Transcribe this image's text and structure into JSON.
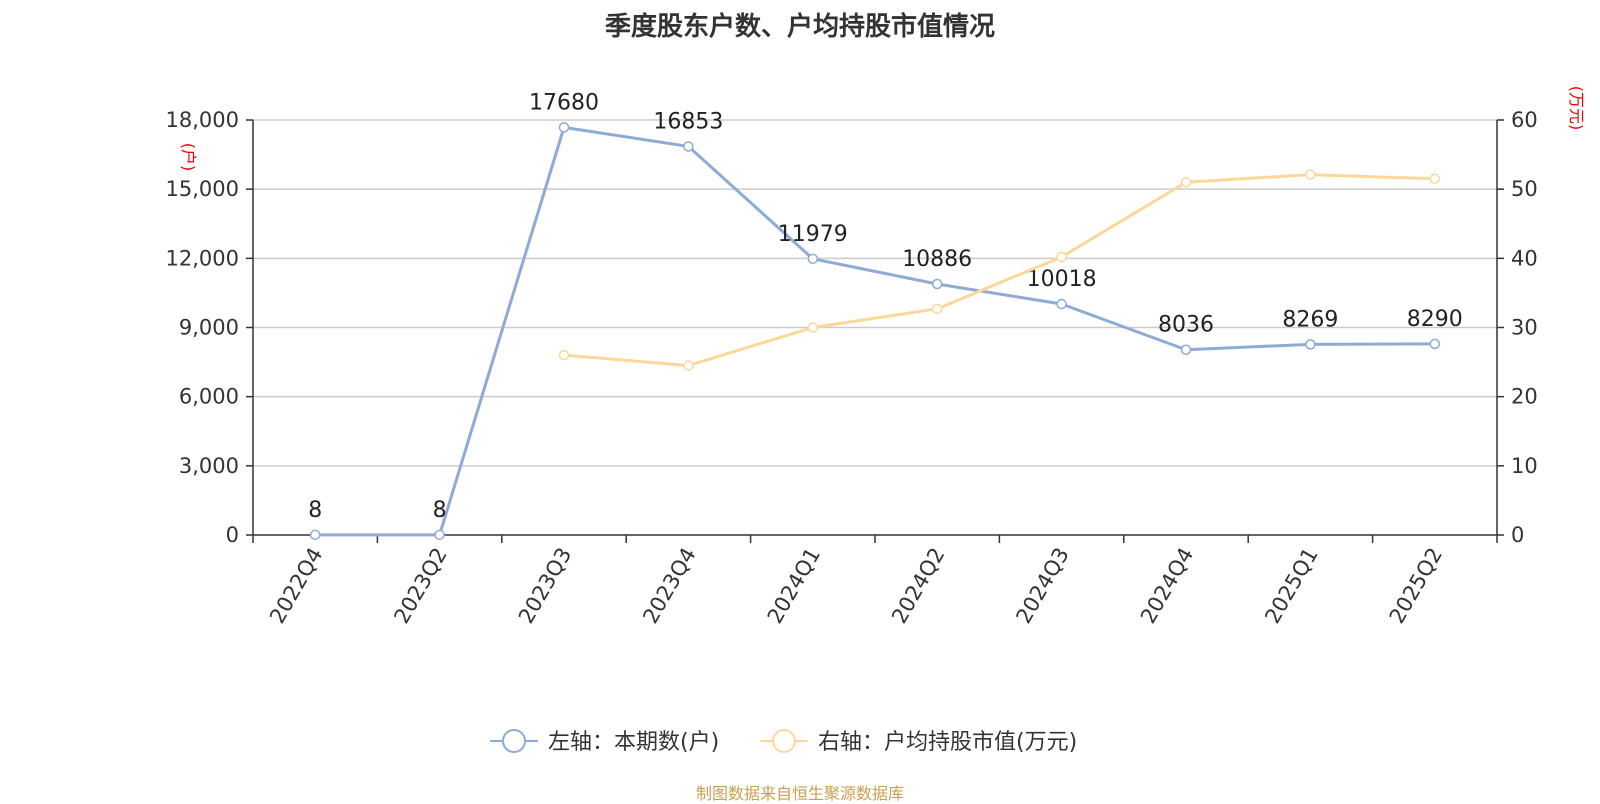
{
  "chart_data": {
    "type": "line",
    "title": "季度股东户数、户均持股市值情况",
    "categories": [
      "2022Q4",
      "2023Q2",
      "2023Q3",
      "2023Q4",
      "2024Q1",
      "2024Q2",
      "2024Q3",
      "2024Q4",
      "2025Q1",
      "2025Q2"
    ],
    "left_axis": {
      "unit": "(户)",
      "ylim": [
        0,
        18000
      ],
      "ticks": [
        0,
        3000,
        6000,
        9000,
        12000,
        15000,
        18000
      ],
      "tick_labels": [
        "0",
        "3,000",
        "6,000",
        "9,000",
        "12,000",
        "15,000",
        "18,000"
      ]
    },
    "right_axis": {
      "unit": "(万元)",
      "ylim": [
        0,
        60
      ],
      "ticks": [
        0,
        10,
        20,
        30,
        40,
        50,
        60
      ],
      "tick_labels": [
        "0",
        "10",
        "20",
        "30",
        "40",
        "50",
        "60"
      ]
    },
    "series": [
      {
        "name": "左轴：本期数(户)",
        "axis": "left",
        "color": "#8eaad6",
        "values": [
          8,
          8,
          17680,
          16853,
          11979,
          10886,
          10018,
          8036,
          8269,
          8290
        ],
        "data_labels": [
          "8",
          "8",
          "17680",
          "16853",
          "11979",
          "10886",
          "10018",
          "8036",
          "8269",
          "8290"
        ]
      },
      {
        "name": "右轴：户均持股市值(万元)",
        "axis": "right",
        "color": "#fcd898",
        "values": [
          null,
          null,
          26.0,
          24.5,
          30.0,
          32.7,
          40.2,
          51.0,
          52.1,
          51.5
        ]
      }
    ],
    "grid": true,
    "legend_position": "bottom"
  },
  "footer": "制图数据来自恒生聚源数据库"
}
